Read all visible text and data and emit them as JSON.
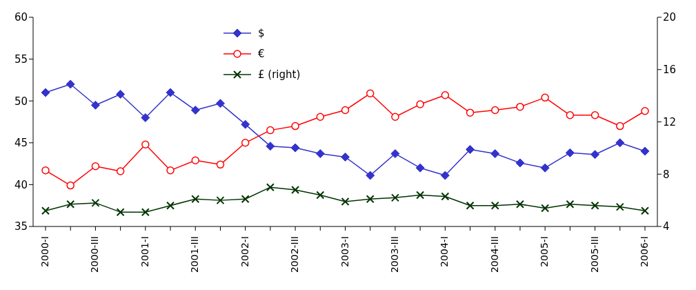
{
  "chart_data": {
    "type": "line",
    "categories": [
      "2000-I",
      null,
      "2000-III",
      null,
      "2001-I",
      null,
      "2001-III",
      null,
      "2002-I",
      null,
      "2002-III",
      null,
      "2003-I",
      null,
      "2003-III",
      null,
      "2004-I",
      null,
      "2004-III",
      null,
      "2005-I",
      null,
      "2005-III",
      null,
      "2006-I"
    ],
    "series": [
      {
        "name": "$",
        "color": "#3333cc",
        "marker": "diamond",
        "values": [
          51.0,
          52.0,
          49.5,
          50.8,
          48.0,
          51.0,
          48.9,
          49.7,
          47.2,
          44.6,
          44.4,
          43.7,
          43.3,
          41.1,
          43.7,
          42.0,
          41.1,
          44.2,
          43.7,
          42.6,
          42.0,
          43.8,
          43.6,
          45.0,
          44.0
        ]
      },
      {
        "name": "€",
        "color": "#ff0000",
        "marker": "circle",
        "values": [
          41.7,
          39.9,
          42.2,
          41.6,
          44.8,
          41.7,
          42.9,
          42.4,
          45.0,
          46.5,
          47.0,
          48.1,
          48.9,
          50.9,
          48.1,
          49.6,
          50.7,
          48.6,
          48.9,
          49.3,
          50.4,
          48.3,
          48.3,
          47.0,
          48.8
        ]
      },
      {
        "name": "£ (right)",
        "color": "#003300",
        "marker": "cross",
        "axis": "y2",
        "values": [
          5.2,
          5.7,
          5.8,
          5.1,
          5.1,
          5.6,
          6.1,
          6.0,
          6.1,
          7.0,
          6.8,
          6.4,
          5.9,
          6.1,
          6.2,
          6.4,
          6.3,
          5.6,
          5.6,
          5.7,
          5.4,
          5.7,
          5.6,
          5.5,
          5.2
        ]
      }
    ],
    "ylim": [
      35,
      60
    ],
    "yticks": [
      35,
      40,
      45,
      50,
      55,
      60
    ],
    "y2lim": [
      4,
      20
    ],
    "y2ticks": [
      4,
      8,
      12,
      16,
      20
    ],
    "grid": false,
    "legend": "top",
    "line_style": "solid"
  }
}
